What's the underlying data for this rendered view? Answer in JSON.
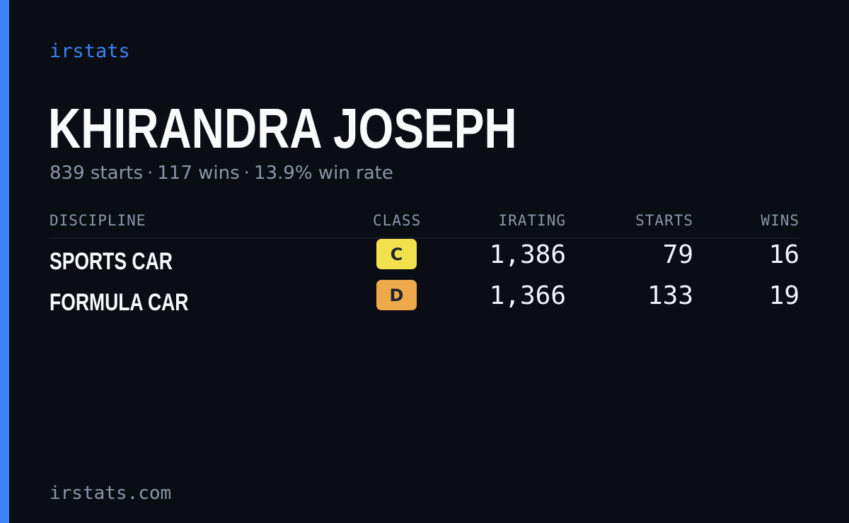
{
  "brand": "irstats",
  "driver": {
    "name": "KHIRANDRA JOSEPH",
    "starts_text": "839 starts",
    "wins_text": "117 wins",
    "win_rate_text": "13.9% win rate",
    "separator": "·"
  },
  "table": {
    "headers": {
      "discipline": "DISCIPLINE",
      "class": "CLASS",
      "irating": "IRATING",
      "starts": "STARTS",
      "wins": "WINS"
    },
    "rows": [
      {
        "discipline": "SPORTS CAR",
        "class": "C",
        "class_color": "#f2e14c",
        "irating": "1,386",
        "starts": "79",
        "wins": "16"
      },
      {
        "discipline": "FORMULA CAR",
        "class": "D",
        "class_color": "#eda94a",
        "irating": "1,366",
        "starts": "133",
        "wins": "19"
      }
    ]
  },
  "footer": {
    "url": "irstats.com"
  },
  "colors": {
    "background": "#0b0d14",
    "accent": "#3b82f6",
    "text_primary": "#f8fafc",
    "text_muted": "#8b95a8"
  }
}
